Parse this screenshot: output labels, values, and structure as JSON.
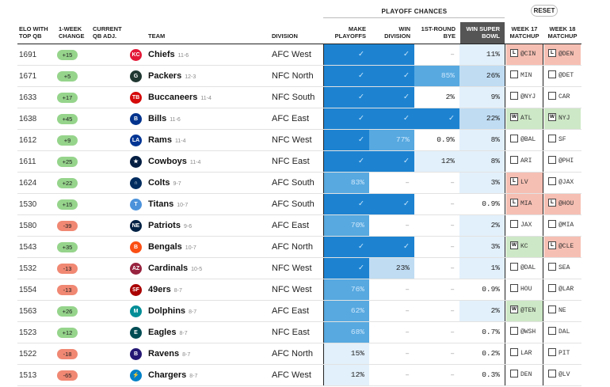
{
  "header": {
    "group": "PLAYOFF CHANCES",
    "reset": "RESET",
    "cols": {
      "elo": "ELO WITH TOP QB",
      "chg": "1-WEEK CHANGE",
      "qb": "CURRENT QB ADJ.",
      "team": "TEAM",
      "division": "DIVISION",
      "make": "MAKE PLAYOFFS",
      "windiv": "WIN DIVISION",
      "bye": "1ST-ROUND BYE",
      "wsb": "WIN SUPER BOWL",
      "w17": "WEEK 17 MATCHUP",
      "w18": "WEEK 18 MATCHUP"
    }
  },
  "colors": {
    "dark": "#1d83d1",
    "mid": "#57a9e0",
    "light": "#bfdcf3",
    "pale": "#e2f0fb",
    "pos_badge": "#96d48c",
    "neg_badge": "#f08873",
    "loss": "#f6bfb3",
    "win": "#cde8c6"
  },
  "rows": [
    {
      "elo": "1691",
      "chg": "+15",
      "team": "Chiefs",
      "rec": "11-6",
      "div": "AFC West",
      "logo": "chiefs-logo-icon",
      "logo_color": "#e31837",
      "logo_char": "KC",
      "make": {
        "v": "✓",
        "c": "dark"
      },
      "windiv": {
        "v": "✓",
        "c": "dark"
      },
      "bye": {
        "v": "–",
        "c": "none"
      },
      "wsb": {
        "v": "11%",
        "c": "pale"
      },
      "w17": {
        "mark": "L",
        "text": "@CIN",
        "state": "loss"
      },
      "w18": {
        "mark": "L",
        "text": "@DEN",
        "state": "loss"
      }
    },
    {
      "elo": "1671",
      "chg": "+5",
      "team": "Packers",
      "rec": "12-3",
      "div": "NFC North",
      "logo": "packers-logo-icon",
      "logo_color": "#203731",
      "logo_char": "G",
      "make": {
        "v": "✓",
        "c": "dark"
      },
      "windiv": {
        "v": "✓",
        "c": "dark"
      },
      "bye": {
        "v": "85%",
        "c": "mid"
      },
      "wsb": {
        "v": "26%",
        "c": "light"
      },
      "w17": {
        "mark": "",
        "text": "MIN",
        "state": "none"
      },
      "w18": {
        "mark": "",
        "text": "@DET",
        "state": "none"
      }
    },
    {
      "elo": "1633",
      "chg": "+17",
      "team": "Buccaneers",
      "rec": "11-4",
      "div": "NFC South",
      "logo": "buccaneers-logo-icon",
      "logo_color": "#d50a0a",
      "logo_char": "TB",
      "make": {
        "v": "✓",
        "c": "dark"
      },
      "windiv": {
        "v": "✓",
        "c": "dark"
      },
      "bye": {
        "v": "2%",
        "c": "none"
      },
      "wsb": {
        "v": "9%",
        "c": "pale"
      },
      "w17": {
        "mark": "",
        "text": "@NYJ",
        "state": "none"
      },
      "w18": {
        "mark": "",
        "text": "CAR",
        "state": "none"
      }
    },
    {
      "elo": "1638",
      "chg": "+45",
      "team": "Bills",
      "rec": "11-6",
      "div": "AFC East",
      "logo": "bills-logo-icon",
      "logo_color": "#00338d",
      "logo_char": "B",
      "make": {
        "v": "✓",
        "c": "dark"
      },
      "windiv": {
        "v": "✓",
        "c": "dark"
      },
      "bye": {
        "v": "✓",
        "c": "dark"
      },
      "wsb": {
        "v": "22%",
        "c": "light"
      },
      "w17": {
        "mark": "W",
        "text": "ATL",
        "state": "win"
      },
      "w18": {
        "mark": "W",
        "text": "NYJ",
        "state": "win"
      }
    },
    {
      "elo": "1612",
      "chg": "+9",
      "team": "Rams",
      "rec": "11-4",
      "div": "NFC West",
      "logo": "rams-logo-icon",
      "logo_color": "#003594",
      "logo_char": "LA",
      "make": {
        "v": "✓",
        "c": "dark"
      },
      "windiv": {
        "v": "77%",
        "c": "mid"
      },
      "bye": {
        "v": "0.9%",
        "c": "none"
      },
      "wsb": {
        "v": "8%",
        "c": "pale"
      },
      "w17": {
        "mark": "",
        "text": "@BAL",
        "state": "none"
      },
      "w18": {
        "mark": "",
        "text": "SF",
        "state": "none"
      }
    },
    {
      "elo": "1611",
      "chg": "+25",
      "team": "Cowboys",
      "rec": "11-4",
      "div": "NFC East",
      "logo": "cowboys-logo-icon",
      "logo_color": "#041e42",
      "logo_char": "★",
      "make": {
        "v": "✓",
        "c": "dark"
      },
      "windiv": {
        "v": "✓",
        "c": "dark"
      },
      "bye": {
        "v": "12%",
        "c": "pale"
      },
      "wsb": {
        "v": "8%",
        "c": "pale"
      },
      "w17": {
        "mark": "",
        "text": "ARI",
        "state": "none"
      },
      "w18": {
        "mark": "",
        "text": "@PHI",
        "state": "none"
      }
    },
    {
      "elo": "1624",
      "chg": "+22",
      "team": "Colts",
      "rec": "9-7",
      "div": "AFC South",
      "logo": "colts-logo-icon",
      "logo_color": "#002c5f",
      "logo_char": "∩",
      "make": {
        "v": "83%",
        "c": "mid"
      },
      "windiv": {
        "v": "–",
        "c": "none"
      },
      "bye": {
        "v": "–",
        "c": "none"
      },
      "wsb": {
        "v": "3%",
        "c": "pale"
      },
      "w17": {
        "mark": "L",
        "text": "LV",
        "state": "loss"
      },
      "w18": {
        "mark": "",
        "text": "@JAX",
        "state": "none"
      }
    },
    {
      "elo": "1530",
      "chg": "+15",
      "team": "Titans",
      "rec": "10-7",
      "div": "AFC South",
      "logo": "titans-logo-icon",
      "logo_color": "#4b92db",
      "logo_char": "T",
      "make": {
        "v": "✓",
        "c": "dark"
      },
      "windiv": {
        "v": "✓",
        "c": "dark"
      },
      "bye": {
        "v": "–",
        "c": "none"
      },
      "wsb": {
        "v": "0.9%",
        "c": "none"
      },
      "w17": {
        "mark": "L",
        "text": "MIA",
        "state": "loss"
      },
      "w18": {
        "mark": "L",
        "text": "@HOU",
        "state": "loss"
      }
    },
    {
      "elo": "1580",
      "chg": "-39",
      "team": "Patriots",
      "rec": "9-6",
      "div": "AFC East",
      "logo": "patriots-logo-icon",
      "logo_color": "#002244",
      "logo_char": "NE",
      "make": {
        "v": "70%",
        "c": "mid"
      },
      "windiv": {
        "v": "–",
        "c": "none"
      },
      "bye": {
        "v": "–",
        "c": "none"
      },
      "wsb": {
        "v": "2%",
        "c": "pale"
      },
      "w17": {
        "mark": "",
        "text": "JAX",
        "state": "none"
      },
      "w18": {
        "mark": "",
        "text": "@MIA",
        "state": "none"
      }
    },
    {
      "elo": "1543",
      "chg": "+35",
      "team": "Bengals",
      "rec": "10-7",
      "div": "AFC North",
      "logo": "bengals-logo-icon",
      "logo_color": "#fb4f14",
      "logo_char": "B",
      "make": {
        "v": "✓",
        "c": "dark"
      },
      "windiv": {
        "v": "✓",
        "c": "dark"
      },
      "bye": {
        "v": "–",
        "c": "none"
      },
      "wsb": {
        "v": "3%",
        "c": "pale"
      },
      "w17": {
        "mark": "W",
        "text": "KC",
        "state": "win"
      },
      "w18": {
        "mark": "L",
        "text": "@CLE",
        "state": "loss"
      }
    },
    {
      "elo": "1532",
      "chg": "-13",
      "team": "Cardinals",
      "rec": "10-5",
      "div": "NFC West",
      "logo": "cardinals-logo-icon",
      "logo_color": "#97233f",
      "logo_char": "AZ",
      "make": {
        "v": "✓",
        "c": "dark"
      },
      "windiv": {
        "v": "23%",
        "c": "light"
      },
      "bye": {
        "v": "–",
        "c": "none"
      },
      "wsb": {
        "v": "1%",
        "c": "pale"
      },
      "w17": {
        "mark": "",
        "text": "@DAL",
        "state": "none"
      },
      "w18": {
        "mark": "",
        "text": "SEA",
        "state": "none"
      }
    },
    {
      "elo": "1554",
      "chg": "-13",
      "team": "49ers",
      "rec": "8-7",
      "div": "NFC West",
      "logo": "49ers-logo-icon",
      "logo_color": "#aa0000",
      "logo_char": "SF",
      "make": {
        "v": "76%",
        "c": "mid"
      },
      "windiv": {
        "v": "–",
        "c": "none"
      },
      "bye": {
        "v": "–",
        "c": "none"
      },
      "wsb": {
        "v": "0.9%",
        "c": "none"
      },
      "w17": {
        "mark": "",
        "text": "HOU",
        "state": "none"
      },
      "w18": {
        "mark": "",
        "text": "@LAR",
        "state": "none"
      }
    },
    {
      "elo": "1563",
      "chg": "+26",
      "team": "Dolphins",
      "rec": "8-7",
      "div": "AFC East",
      "logo": "dolphins-logo-icon",
      "logo_color": "#008e97",
      "logo_char": "M",
      "make": {
        "v": "62%",
        "c": "mid"
      },
      "windiv": {
        "v": "–",
        "c": "none"
      },
      "bye": {
        "v": "–",
        "c": "none"
      },
      "wsb": {
        "v": "2%",
        "c": "pale"
      },
      "w17": {
        "mark": "W",
        "text": "@TEN",
        "state": "win"
      },
      "w18": {
        "mark": "",
        "text": "NE",
        "state": "none"
      }
    },
    {
      "elo": "1523",
      "chg": "+12",
      "team": "Eagles",
      "rec": "8-7",
      "div": "NFC East",
      "logo": "eagles-logo-icon",
      "logo_color": "#004c54",
      "logo_char": "E",
      "make": {
        "v": "68%",
        "c": "mid"
      },
      "windiv": {
        "v": "–",
        "c": "none"
      },
      "bye": {
        "v": "–",
        "c": "none"
      },
      "wsb": {
        "v": "0.7%",
        "c": "none"
      },
      "w17": {
        "mark": "",
        "text": "@WSH",
        "state": "none"
      },
      "w18": {
        "mark": "",
        "text": "DAL",
        "state": "none"
      }
    },
    {
      "elo": "1522",
      "chg": "-18",
      "team": "Ravens",
      "rec": "8-7",
      "div": "AFC North",
      "logo": "ravens-logo-icon",
      "logo_color": "#241773",
      "logo_char": "B",
      "make": {
        "v": "15%",
        "c": "pale"
      },
      "windiv": {
        "v": "–",
        "c": "none"
      },
      "bye": {
        "v": "–",
        "c": "none"
      },
      "wsb": {
        "v": "0.2%",
        "c": "none"
      },
      "w17": {
        "mark": "",
        "text": "LAR",
        "state": "none"
      },
      "w18": {
        "mark": "",
        "text": "PIT",
        "state": "none"
      }
    },
    {
      "elo": "1513",
      "chg": "-65",
      "team": "Chargers",
      "rec": "8-7",
      "div": "AFC West",
      "logo": "chargers-logo-icon",
      "logo_color": "#0080c6",
      "logo_char": "⚡",
      "make": {
        "v": "12%",
        "c": "pale"
      },
      "windiv": {
        "v": "–",
        "c": "none"
      },
      "bye": {
        "v": "–",
        "c": "none"
      },
      "wsb": {
        "v": "0.3%",
        "c": "none"
      },
      "w17": {
        "mark": "",
        "text": "DEN",
        "state": "none"
      },
      "w18": {
        "mark": "",
        "text": "@LV",
        "state": "none"
      }
    }
  ]
}
